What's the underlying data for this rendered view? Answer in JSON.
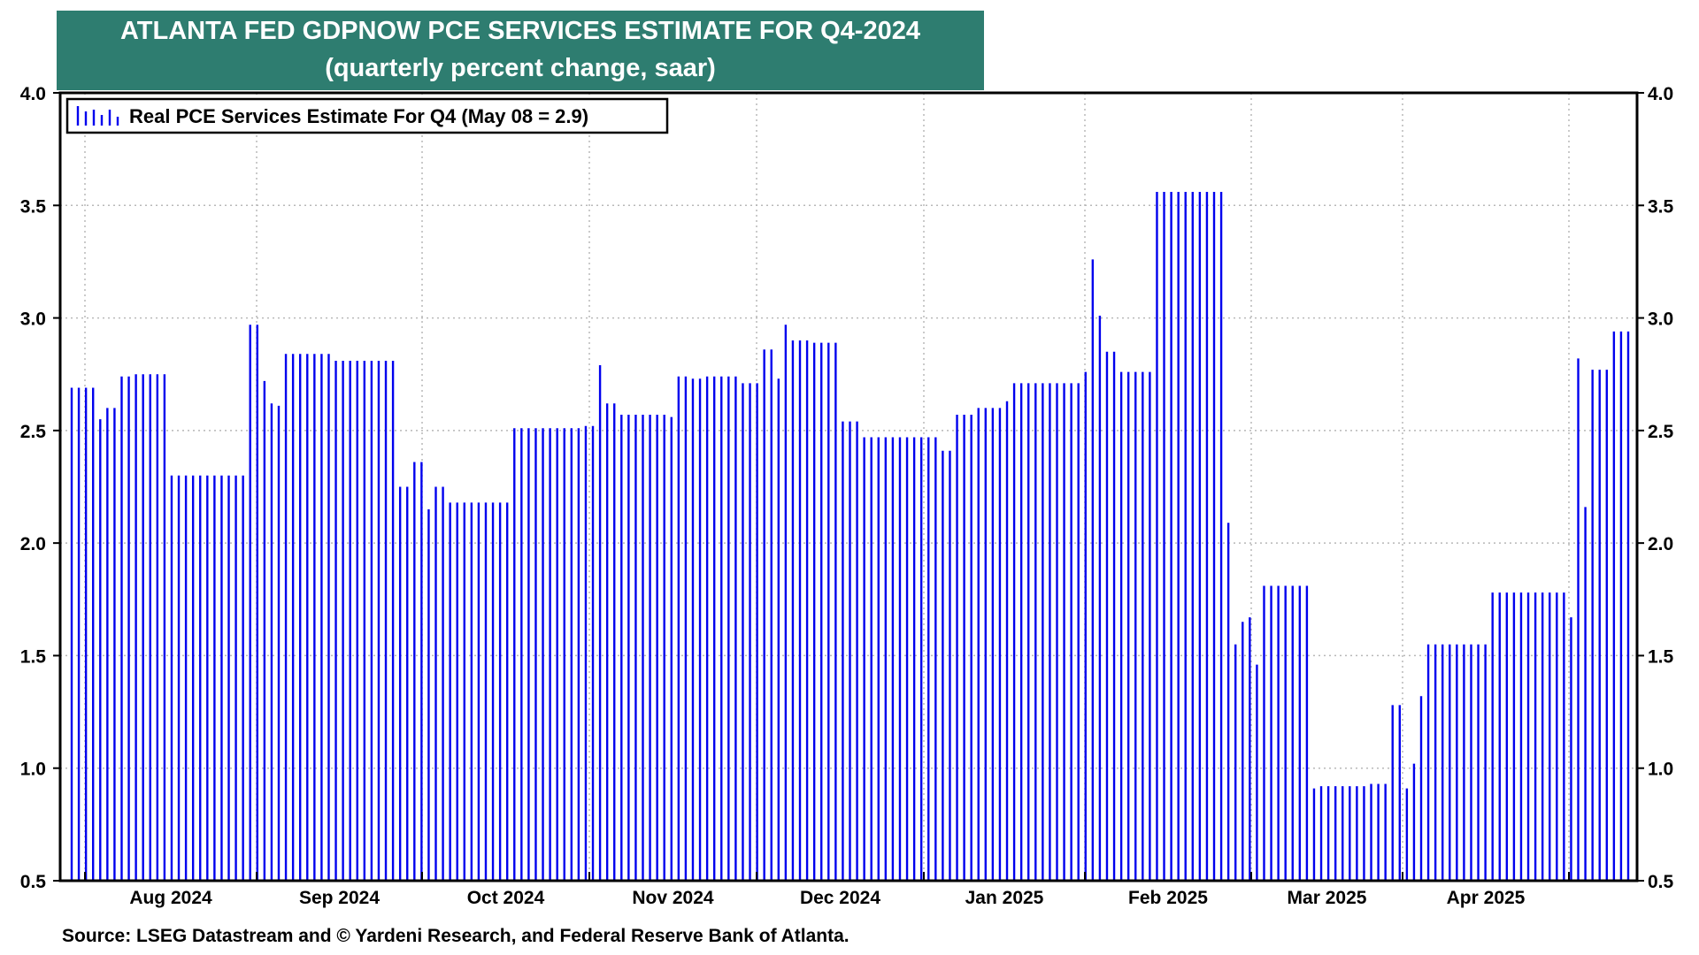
{
  "source": "Source: LSEG Datastream and © Yardeni Research, and Federal Reserve Bank of Atlanta.",
  "chart_data": {
    "type": "bar",
    "title": "ATLANTA FED GDPNOW PCE SERVICES ESTIMATE FOR Q4-2024",
    "subtitle": "(quarterly percent change, saar)",
    "legend": {
      "label": "Real PCE Services Estimate For Q4 (May 08 = 2.9)",
      "position": "top-left"
    },
    "ylim": [
      0.5,
      4.0
    ],
    "yticks": [
      "0.5",
      "1.0",
      "1.5",
      "2.0",
      "2.5",
      "3.0",
      "3.5",
      "4.0"
    ],
    "ytick_values": [
      0.5,
      1.0,
      1.5,
      2.0,
      2.5,
      3.0,
      3.5,
      4.0
    ],
    "xticks": [
      "Aug 2024",
      "Sep 2024",
      "Oct 2024",
      "Nov 2024",
      "Dec 2024",
      "Jan 2025",
      "Feb 2025",
      "Mar 2025",
      "Apr 2025"
    ],
    "grid": true,
    "bar_color": "#0000ee",
    "values": [
      2.69,
      2.69,
      2.69,
      2.69,
      2.55,
      2.6,
      2.6,
      2.74,
      2.74,
      2.75,
      2.75,
      2.75,
      2.75,
      2.75,
      2.3,
      2.3,
      2.3,
      2.3,
      2.3,
      2.3,
      2.3,
      2.3,
      2.3,
      2.3,
      2.3,
      2.97,
      2.97,
      2.72,
      2.62,
      2.61,
      2.84,
      2.84,
      2.84,
      2.84,
      2.84,
      2.84,
      2.84,
      2.81,
      2.81,
      2.81,
      2.81,
      2.81,
      2.81,
      2.81,
      2.81,
      2.81,
      2.25,
      2.25,
      2.36,
      2.36,
      2.15,
      2.25,
      2.25,
      2.18,
      2.18,
      2.18,
      2.18,
      2.18,
      2.18,
      2.18,
      2.18,
      2.18,
      2.51,
      2.51,
      2.51,
      2.51,
      2.51,
      2.51,
      2.51,
      2.51,
      2.51,
      2.51,
      2.52,
      2.52,
      2.79,
      2.62,
      2.62,
      2.57,
      2.57,
      2.57,
      2.57,
      2.57,
      2.57,
      2.57,
      2.56,
      2.74,
      2.74,
      2.73,
      2.73,
      2.74,
      2.74,
      2.74,
      2.74,
      2.74,
      2.71,
      2.71,
      2.71,
      2.86,
      2.86,
      2.73,
      2.97,
      2.9,
      2.9,
      2.9,
      2.89,
      2.89,
      2.89,
      2.89,
      2.54,
      2.54,
      2.54,
      2.47,
      2.47,
      2.47,
      2.47,
      2.47,
      2.47,
      2.47,
      2.47,
      2.47,
      2.47,
      2.47,
      2.41,
      2.41,
      2.57,
      2.57,
      2.57,
      2.6,
      2.6,
      2.6,
      2.6,
      2.63,
      2.71,
      2.71,
      2.71,
      2.71,
      2.71,
      2.71,
      2.71,
      2.71,
      2.71,
      2.71,
      2.76,
      3.26,
      3.01,
      2.85,
      2.85,
      2.76,
      2.76,
      2.76,
      2.76,
      2.76,
      3.56,
      3.56,
      3.56,
      3.56,
      3.56,
      3.56,
      3.56,
      3.56,
      3.56,
      3.56,
      2.09,
      1.55,
      1.65,
      1.67,
      1.46,
      1.81,
      1.81,
      1.81,
      1.81,
      1.81,
      1.81,
      1.81,
      0.91,
      0.92,
      0.92,
      0.92,
      0.92,
      0.92,
      0.92,
      0.92,
      0.93,
      0.93,
      0.93,
      1.28,
      1.28,
      0.91,
      1.02,
      1.32,
      1.55,
      1.55,
      1.55,
      1.55,
      1.55,
      1.55,
      1.55,
      1.55,
      1.55,
      1.78,
      1.78,
      1.78,
      1.78,
      1.78,
      1.78,
      1.78,
      1.78,
      1.78,
      1.78,
      1.78,
      1.67,
      2.82,
      2.16,
      2.77,
      2.77,
      2.77,
      2.94,
      2.94,
      2.94
    ]
  }
}
